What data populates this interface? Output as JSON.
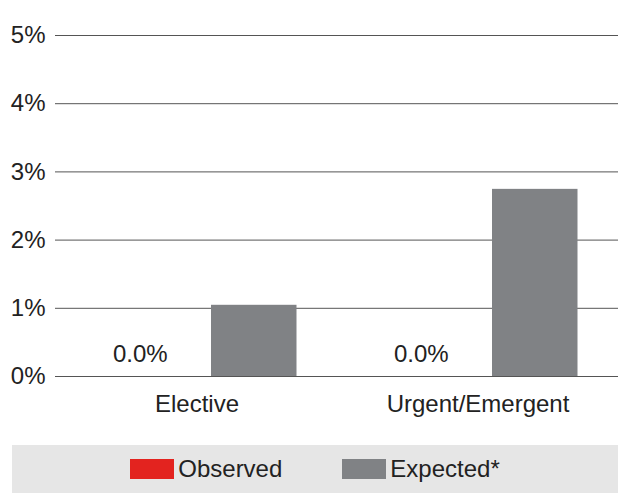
{
  "chart_data": {
    "type": "bar",
    "categories": [
      "Elective",
      "Urgent/Emergent"
    ],
    "series": [
      {
        "name": "Observed",
        "color": "#e3231f",
        "values": [
          0.0,
          0.0
        ],
        "data_labels": true,
        "value_labels": [
          "0.0%",
          "0.0%"
        ]
      },
      {
        "name": "Expected*",
        "color": "#808285",
        "values": [
          1.0,
          2.7
        ]
      }
    ],
    "ylim": [
      0,
      5
    ],
    "yticks": [
      {
        "value": 0,
        "label": "0%"
      },
      {
        "value": 1,
        "label": "1%"
      },
      {
        "value": 2,
        "label": "2%"
      },
      {
        "value": 3,
        "label": "3%"
      },
      {
        "value": 4,
        "label": "4%"
      },
      {
        "value": 5,
        "label": "5%"
      }
    ],
    "grid": true,
    "legend": "bottom"
  }
}
